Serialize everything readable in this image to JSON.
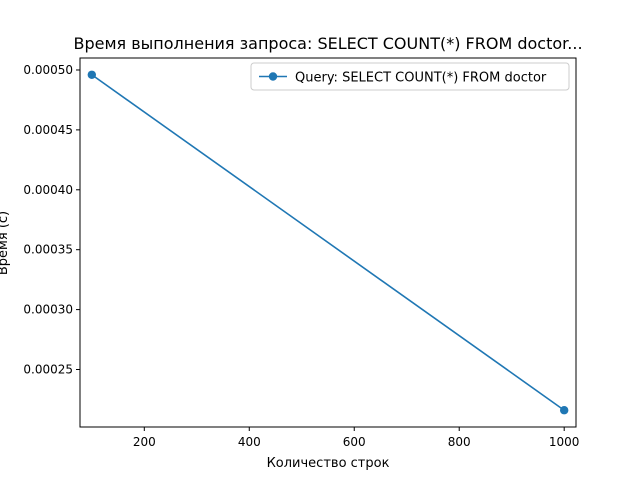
{
  "chart_data": {
    "type": "line",
    "title": "Время выполнения запроса: SELECT COUNT(*) FROM doctor...",
    "xlabel": "Количество строк",
    "ylabel": "Время (с)",
    "xlim": [
      77.5,
      1022.5
    ],
    "ylim": [
      0.000202,
      0.00051
    ],
    "xticks": [
      200,
      400,
      600,
      800,
      1000
    ],
    "xtick_labels": [
      "200",
      "400",
      "600",
      "800",
      "1000"
    ],
    "yticks": [
      0.00025,
      0.0003,
      0.00035,
      0.0004,
      0.00045,
      0.0005
    ],
    "ytick_labels": [
      "0.00025",
      "0.00030",
      "0.00035",
      "0.00040",
      "0.00045",
      "0.00050"
    ],
    "grid": false,
    "legend_position": "top-right",
    "series": [
      {
        "name": "Query: SELECT COUNT(*) FROM doctor",
        "color": "#1f77b4",
        "marker": "circle",
        "x": [
          100,
          1000
        ],
        "y": [
          0.000496,
          0.000216
        ]
      }
    ]
  }
}
